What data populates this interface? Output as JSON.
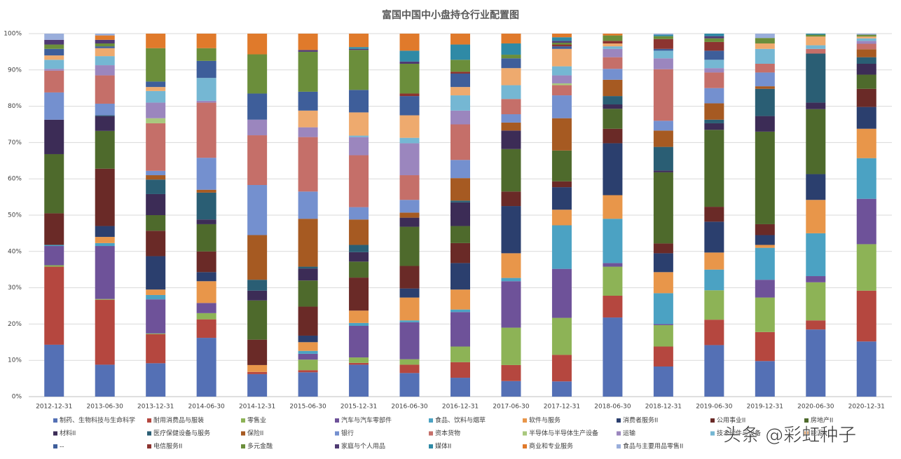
{
  "chart_data": {
    "type": "stacked_bar_100",
    "title": "富国中国中小盘持仓行业配置图",
    "watermark": "头条 @彩虹种子",
    "categories": [
      "2012-12-31",
      "2013-06-30",
      "2013-12-31",
      "2014-06-30",
      "2014-12-31",
      "2015-06-30",
      "2015-12-31",
      "2016-06-30",
      "2016-12-31",
      "2017-06-30",
      "2017-12-31",
      "2018-06-30",
      "2018-12-31",
      "2019-06-30",
      "2019-12-31",
      "2020-06-30",
      "2020-12-31"
    ],
    "ylim": [
      0,
      100
    ],
    "yticks": [
      {
        "value": 0,
        "label": "0%"
      },
      {
        "value": 10,
        "label": "10%"
      },
      {
        "value": 20,
        "label": "20%"
      },
      {
        "value": 30,
        "label": "30%"
      },
      {
        "value": 40,
        "label": "40%"
      },
      {
        "value": 50,
        "label": "50%"
      },
      {
        "value": 60,
        "label": "60%"
      },
      {
        "value": 70,
        "label": "70%"
      },
      {
        "value": 80,
        "label": "80%"
      },
      {
        "value": 90,
        "label": "90%"
      },
      {
        "value": 100,
        "label": "100%"
      }
    ],
    "grid": true,
    "legend": "bottom",
    "series": [
      {
        "name": "制药、生物科技与生命科学",
        "color": "#5470b5",
        "values": [
          14.3,
          8.8,
          9.2,
          16.2,
          6.2,
          6.7,
          8.8,
          6.5,
          5.2,
          4.3,
          4.2,
          21.8,
          8.3,
          14.2,
          9.8,
          18.5,
          15.2
        ]
      },
      {
        "name": "耐用消费品与服装",
        "color": "#b5473f",
        "values": [
          21.5,
          17.9,
          8,
          5.1,
          0.6,
          0.6,
          0.5,
          2.3,
          4.3,
          4.4,
          7.3,
          6,
          5.5,
          7,
          8,
          2.5,
          14
        ]
      },
      {
        "name": "零售业",
        "color": "#8db356",
        "values": [
          0.4,
          0.2,
          0.2,
          1.7,
          0,
          2.9,
          1.5,
          1.5,
          4.3,
          10.3,
          10.2,
          8,
          5.9,
          8.1,
          9.5,
          10.5,
          12.8
        ]
      },
      {
        "name": "汽车与汽车零部件",
        "color": "#6e5299",
        "values": [
          5.3,
          14.6,
          9.4,
          2.8,
          0,
          1.6,
          8.7,
          10.2,
          9.5,
          12.8,
          13.5,
          1,
          0.3,
          0,
          4.9,
          1.7,
          12.5
        ]
      },
      {
        "name": "食品、饮料与烟草",
        "color": "#4ba2c3",
        "values": [
          0.3,
          0.8,
          1.2,
          0,
          0,
          0.8,
          0.8,
          0.5,
          0.7,
          0.9,
          12,
          12.2,
          8.5,
          5.7,
          8.8,
          11.8,
          11.2
        ]
      },
      {
        "name": "软件与服务",
        "color": "#e8964a",
        "values": [
          0,
          1.7,
          1.5,
          6,
          1.9,
          2.4,
          3.4,
          6.3,
          5.5,
          6.8,
          4.3,
          6.5,
          5.8,
          4.7,
          0.8,
          9.2,
          8.1
        ]
      },
      {
        "name": "消费者服务II",
        "color": "#2b3f6e",
        "values": [
          0,
          3,
          9.2,
          2.5,
          0,
          1.8,
          0,
          2.5,
          7.3,
          13,
          6.2,
          14.3,
          5.2,
          8.5,
          2.7,
          7.1,
          6
        ]
      },
      {
        "name": "公用事业II",
        "color": "#6a2a27",
        "values": [
          8.7,
          15.8,
          7,
          5.7,
          7,
          8,
          9.1,
          6.2,
          5.5,
          4,
          1.6,
          4,
          2.7,
          4.1,
          3,
          0,
          5
        ]
      },
      {
        "name": "房地产II",
        "color": "#4e6a2c",
        "values": [
          16.3,
          10.4,
          4.3,
          7.5,
          10.8,
          7.2,
          4.4,
          10.8,
          4.7,
          11.7,
          8.5,
          5.5,
          19.6,
          21.2,
          25.5,
          17.9,
          3.9
        ]
      },
      {
        "name": "材料II",
        "color": "#3c2c56",
        "values": [
          9.5,
          4.1,
          5.8,
          1.3,
          2.7,
          3.3,
          2.6,
          2.5,
          6.5,
          5.1,
          0,
          1.2,
          0.5,
          1.8,
          4.3,
          1.8,
          3
        ]
      },
      {
        "name": "医疗保健设备与服务",
        "color": "#2a5e74",
        "values": [
          0,
          0.2,
          4,
          7.4,
          3,
          0.5,
          2,
          0,
          0.5,
          0,
          0,
          2.3,
          6.5,
          1,
          7.5,
          13.5,
          1.8
        ]
      },
      {
        "name": "保险II",
        "color": "#a65a22",
        "values": [
          0,
          0,
          1.2,
          0.8,
          12.3,
          13.2,
          7,
          1.4,
          6.2,
          2.2,
          8.9,
          4.5,
          4.5,
          4.5,
          0.7,
          0,
          2.2
        ]
      },
      {
        "name": "银行",
        "color": "#7490cf",
        "values": [
          7.5,
          3.2,
          1.2,
          8.8,
          13.8,
          7.5,
          3.4,
          3.5,
          5,
          2.3,
          6.3,
          3,
          2.7,
          4.2,
          3.8,
          0,
          0
        ]
      },
      {
        "name": "资本货物",
        "color": "#c56f69",
        "values": [
          6,
          7.8,
          13.1,
          15.2,
          13.7,
          15,
          14.3,
          6.8,
          9.8,
          4.2,
          2.8,
          3.2,
          14.2,
          4.3,
          2.4,
          1.3,
          1.5
        ]
      },
      {
        "name": "半导体与半导体生产设备",
        "color": "#a9c87e",
        "values": [
          0,
          0,
          1.4,
          0,
          0,
          0,
          0,
          0,
          0,
          0,
          0.5,
          0,
          0,
          0,
          0,
          0,
          0
        ]
      },
      {
        "name": "运输",
        "color": "#9b86be",
        "values": [
          0.5,
          2.8,
          4.3,
          0.5,
          4.3,
          2.7,
          5,
          8.8,
          3.8,
          0,
          2.2,
          2.3,
          3,
          1.2,
          0,
          0,
          0.8
        ]
      },
      {
        "name": "技术硬件与设备",
        "color": "#75b7d3",
        "values": [
          2.5,
          2.5,
          3.2,
          6.3,
          0,
          0,
          0.4,
          1.5,
          4.2,
          3.8,
          2.5,
          0.7,
          2.1,
          2.3,
          4.1,
          1,
          0.7
        ]
      },
      {
        "name": "能源II",
        "color": "#eeaa6e",
        "values": [
          1.2,
          2.2,
          1.1,
          0,
          0,
          4.6,
          6.4,
          6.2,
          2.3,
          4.7,
          4.8,
          0.8,
          0,
          0,
          1.5,
          2.4,
          0.5
        ]
      },
      {
        "name": "--",
        "color": "#3e5e9a",
        "values": [
          1.8,
          0.5,
          1.5,
          4.7,
          7.2,
          5.2,
          6.2,
          5.3,
          3.7,
          2.7,
          0.7,
          0,
          0.5,
          2.5,
          0,
          0,
          0
        ]
      },
      {
        "name": "电信服务II",
        "color": "#8c3430",
        "values": [
          0,
          0,
          0,
          0,
          0,
          0,
          0,
          0.7,
          0.5,
          0,
          0.5,
          0.7,
          2.7,
          2.4,
          0,
          0,
          0
        ]
      },
      {
        "name": "多元金融",
        "color": "#6b8e3b",
        "values": [
          1.2,
          0.8,
          9.2,
          3.5,
          10.8,
          11,
          11,
          8.2,
          3.3,
          1,
          0.5,
          1.5,
          0.8,
          1,
          1.5,
          0.5,
          0.5
        ]
      },
      {
        "name": "家庭与个人用品",
        "color": "#4f3a72",
        "values": [
          1.3,
          1,
          0,
          0,
          0,
          0.5,
          0.3,
          0.6,
          0,
          0,
          0.5,
          0,
          0,
          0.6,
          0,
          0,
          0
        ]
      },
      {
        "name": "媒体II",
        "color": "#2f8aa6",
        "values": [
          0,
          0,
          0,
          0,
          0,
          0,
          0.5,
          3,
          4.2,
          3.1,
          1,
          0,
          0.4,
          0.7,
          0,
          0.3,
          0
        ]
      },
      {
        "name": "商业和专业服务",
        "color": "#e07a2b",
        "values": [
          0,
          1.2,
          4,
          4,
          5.7,
          4.5,
          3.7,
          4.7,
          3,
          2.7,
          1,
          0.5,
          0,
          0,
          0,
          0,
          0
        ]
      },
      {
        "name": "食品与主要用品零售II",
        "color": "#9aaedb",
        "values": [
          1.7,
          0.5,
          0,
          0,
          0,
          0,
          0,
          0,
          0,
          0,
          0,
          0,
          0.3,
          0,
          1.2,
          0,
          0.3
        ]
      }
    ]
  }
}
